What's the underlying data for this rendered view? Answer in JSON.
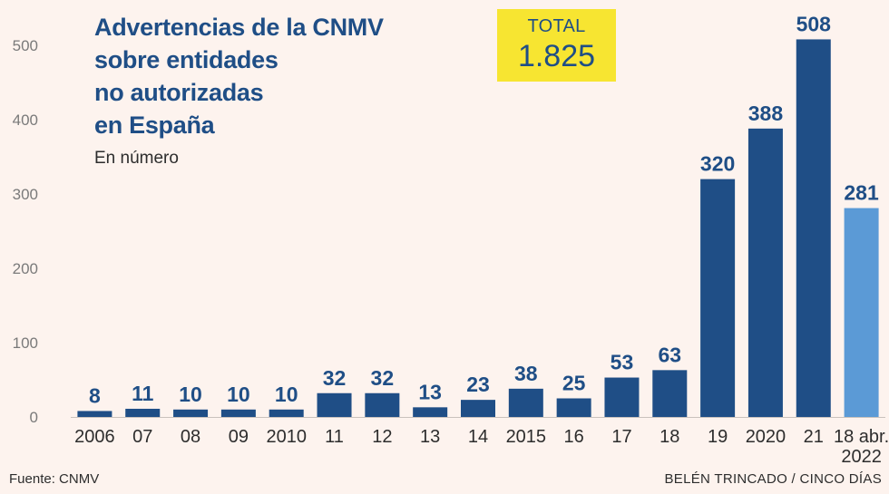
{
  "header": {
    "title_lines": [
      "Advertencias de la CNMV",
      "sobre entidades",
      "no autorizadas",
      "en España"
    ],
    "subtitle": "En número"
  },
  "total": {
    "label": "TOTAL",
    "value": "1.825"
  },
  "footer": {
    "source": "Fuente: CNMV",
    "credit": "BELÉN TRINCADO / CINCO DÍAS"
  },
  "colors": {
    "bar": "#1f4e86",
    "highlight": "#5b9ad6",
    "background": "#fdf3ee",
    "total_box": "#f7e531"
  },
  "chart_data": {
    "type": "bar",
    "categories": [
      "2006",
      "07",
      "08",
      "09",
      "2010",
      "11",
      "12",
      "13",
      "14",
      "2015",
      "16",
      "17",
      "18",
      "19",
      "2020",
      "21",
      "18 abr.\n2022"
    ],
    "values": [
      8,
      11,
      10,
      10,
      10,
      32,
      32,
      13,
      23,
      38,
      25,
      53,
      63,
      320,
      388,
      508,
      281
    ],
    "highlight_index": 16,
    "ylim": [
      0,
      550
    ],
    "yticks": [
      0,
      100,
      200,
      300,
      400,
      500
    ],
    "grid": false,
    "title": "Advertencias de la CNMV sobre entidades no autorizadas en España",
    "subtitle": "En número",
    "xlabel": "",
    "ylabel": ""
  }
}
